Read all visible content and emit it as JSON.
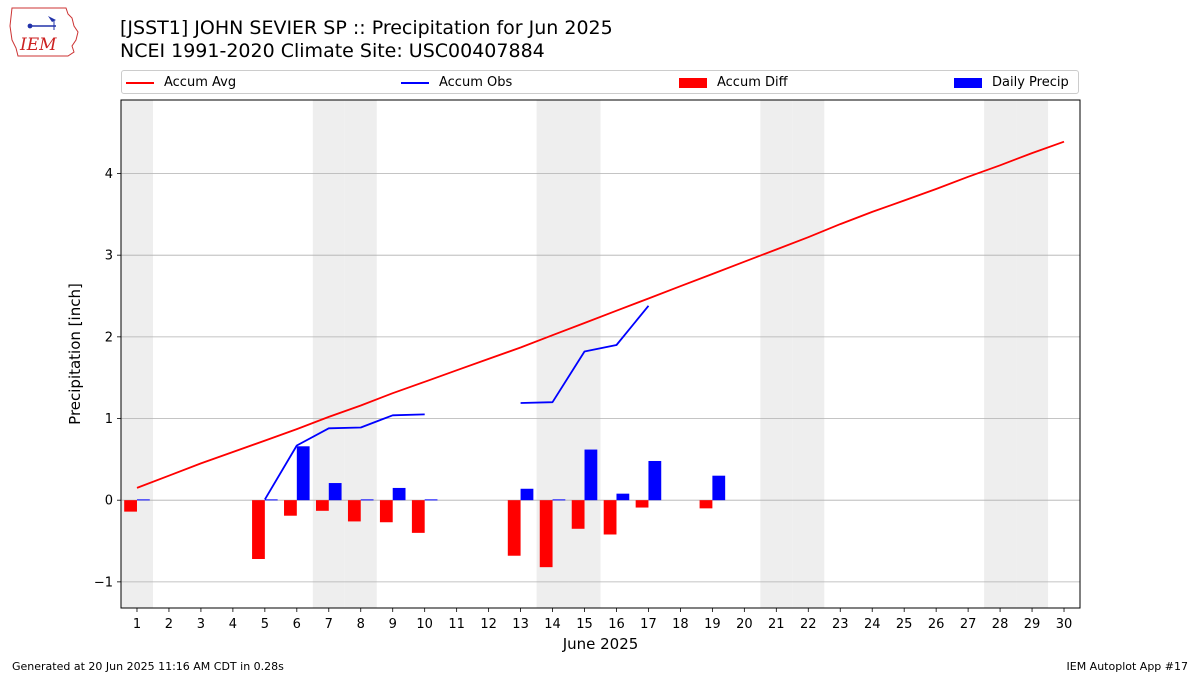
{
  "logo": {
    "text": "IEM"
  },
  "title": {
    "line1": "[JSST1] JOHN SEVIER SP :: Precipitation for Jun 2025",
    "line2": "NCEI 1991-2020 Climate Site: USC00407884"
  },
  "legend": {
    "accum_avg": "Accum Avg",
    "accum_obs": "Accum Obs",
    "accum_diff": "Accum Diff",
    "daily_precip": "Daily Precip"
  },
  "footer": {
    "left": "Generated at 20 Jun 2025 11:16 AM CDT in 0.28s",
    "right": "IEM Autoplot App #17"
  },
  "colors": {
    "accum_avg": "#ff0000",
    "accum_obs": "#0000ff",
    "accum_diff": "#ff0000",
    "daily_precip": "#0000ff",
    "weekend_shade": "#eeeeee",
    "grid": "#b0b0b0"
  },
  "chart_data": {
    "type": "bar",
    "xlabel": "June 2025",
    "ylabel": "Precipitation [inch]",
    "xlim": [
      0.5,
      30.5
    ],
    "ylim": [
      -1.32,
      4.9
    ],
    "yticks": [
      -1,
      0,
      1,
      2,
      3,
      4
    ],
    "ytick_labels": [
      "−1",
      "0",
      "1",
      "2",
      "3",
      "4"
    ],
    "grid": "y",
    "legend_placement": "top",
    "days": [
      1,
      2,
      3,
      4,
      5,
      6,
      7,
      8,
      9,
      10,
      11,
      12,
      13,
      14,
      15,
      16,
      17,
      18,
      19,
      20,
      21,
      22,
      23,
      24,
      25,
      26,
      27,
      28,
      29,
      30
    ],
    "weekend_days": [
      1,
      7,
      8,
      14,
      15,
      21,
      22,
      28,
      29
    ],
    "series": [
      {
        "name": "Accum Avg",
        "kind": "line",
        "values": [
          0.15,
          0.3,
          0.45,
          0.59,
          0.73,
          0.87,
          1.02,
          1.16,
          1.31,
          1.45,
          1.59,
          1.73,
          1.87,
          2.02,
          2.17,
          2.32,
          2.47,
          2.62,
          2.77,
          2.92,
          3.07,
          3.22,
          3.38,
          3.53,
          3.67,
          3.81,
          3.96,
          4.1,
          4.25,
          4.39
        ]
      },
      {
        "name": "Accum Obs",
        "kind": "line",
        "values": [
          null,
          null,
          null,
          null,
          0.01,
          0.67,
          0.88,
          0.89,
          1.04,
          1.05,
          null,
          null,
          1.19,
          1.2,
          1.82,
          1.9,
          2.38,
          null,
          null,
          null,
          null,
          null,
          null,
          null,
          null,
          null,
          null,
          null,
          null,
          null
        ]
      },
      {
        "name": "Accum Diff",
        "kind": "bar",
        "values": [
          -0.14,
          null,
          null,
          null,
          -0.72,
          -0.19,
          -0.13,
          -0.26,
          -0.27,
          -0.4,
          null,
          null,
          -0.68,
          -0.82,
          -0.35,
          -0.42,
          -0.09,
          null,
          -0.1,
          null,
          null,
          null,
          null,
          null,
          null,
          null,
          null,
          null,
          null,
          null
        ]
      },
      {
        "name": "Daily Precip",
        "kind": "bar",
        "values": [
          0.01,
          null,
          null,
          null,
          0.01,
          0.66,
          0.21,
          0.01,
          0.15,
          0.01,
          null,
          null,
          0.14,
          0.01,
          0.62,
          0.08,
          0.48,
          null,
          0.3,
          null,
          null,
          null,
          null,
          null,
          null,
          null,
          null,
          null,
          null,
          null
        ]
      }
    ]
  }
}
